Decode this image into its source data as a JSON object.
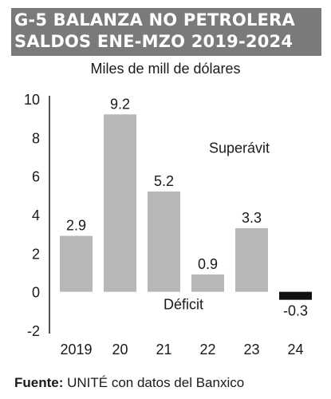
{
  "title_lines": [
    "G-5 BALANZA NO PETROLERA",
    "SALDOS ENE-MZO 2019-2024"
  ],
  "subtitle": "Miles de mill de dólares",
  "source": {
    "label": "Fuente:",
    "text": "UNITÉ con datos del Banxico"
  },
  "colors": {
    "title_bg": "#7a7a7a",
    "bar": "#b7b7b7",
    "negative_bar": "#111111",
    "axis": "#1a1a1a"
  },
  "chart_data": {
    "type": "bar",
    "categories": [
      "2019",
      "20",
      "21",
      "22",
      "23",
      "24"
    ],
    "values": [
      2.9,
      9.2,
      5.2,
      0.9,
      3.3,
      -0.3
    ],
    "data_labels": [
      "2.9",
      "9.2",
      "5.2",
      "0.9",
      "3.3",
      "-0.3"
    ],
    "ylim": [
      -2,
      10
    ],
    "yticks": [
      10,
      8,
      6,
      4,
      2,
      0,
      -2
    ],
    "annotations": [
      "Superávit",
      "Déficit"
    ],
    "title": "G-5 BALANZA NO PETROLERA SALDOS ENE-MZO 2019-2024",
    "ylabel": "Miles de mill de dólares",
    "xlabel": "",
    "grid": false
  }
}
